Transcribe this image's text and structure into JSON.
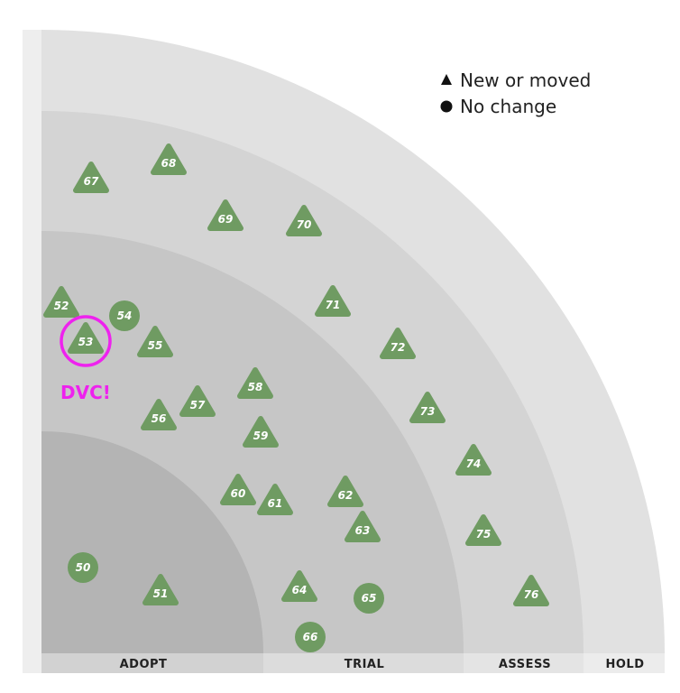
{
  "rings": [
    {
      "id": "adopt",
      "label": "ADOPT",
      "color": "#b4b4b4"
    },
    {
      "id": "trial",
      "label": "TRIAL",
      "color": "#c6c6c6"
    },
    {
      "id": "assess",
      "label": "ASSESS",
      "color": "#d4d4d4"
    },
    {
      "id": "hold",
      "label": "HOLD",
      "color": "#e1e1e1"
    }
  ],
  "legend": {
    "new_or_moved": "New or moved",
    "no_change": "No change"
  },
  "blips": [
    {
      "num": "50",
      "shape": "circle"
    },
    {
      "num": "51",
      "shape": "triangle"
    },
    {
      "num": "52",
      "shape": "triangle"
    },
    {
      "num": "53",
      "shape": "triangle"
    },
    {
      "num": "54",
      "shape": "circle"
    },
    {
      "num": "55",
      "shape": "triangle"
    },
    {
      "num": "56",
      "shape": "triangle"
    },
    {
      "num": "57",
      "shape": "triangle"
    },
    {
      "num": "58",
      "shape": "triangle"
    },
    {
      "num": "59",
      "shape": "triangle"
    },
    {
      "num": "60",
      "shape": "triangle"
    },
    {
      "num": "61",
      "shape": "triangle"
    },
    {
      "num": "62",
      "shape": "triangle"
    },
    {
      "num": "63",
      "shape": "triangle"
    },
    {
      "num": "64",
      "shape": "triangle"
    },
    {
      "num": "65",
      "shape": "circle"
    },
    {
      "num": "66",
      "shape": "circle"
    },
    {
      "num": "67",
      "shape": "triangle"
    },
    {
      "num": "68",
      "shape": "triangle"
    },
    {
      "num": "69",
      "shape": "triangle"
    },
    {
      "num": "70",
      "shape": "triangle"
    },
    {
      "num": "71",
      "shape": "triangle"
    },
    {
      "num": "72",
      "shape": "triangle"
    },
    {
      "num": "73",
      "shape": "triangle"
    },
    {
      "num": "74",
      "shape": "triangle"
    },
    {
      "num": "75",
      "shape": "triangle"
    },
    {
      "num": "76",
      "shape": "triangle"
    }
  ],
  "callout": {
    "label": "DVC!",
    "target": "53",
    "color": "#ee22ee"
  },
  "blip_color": "#6f9b62"
}
